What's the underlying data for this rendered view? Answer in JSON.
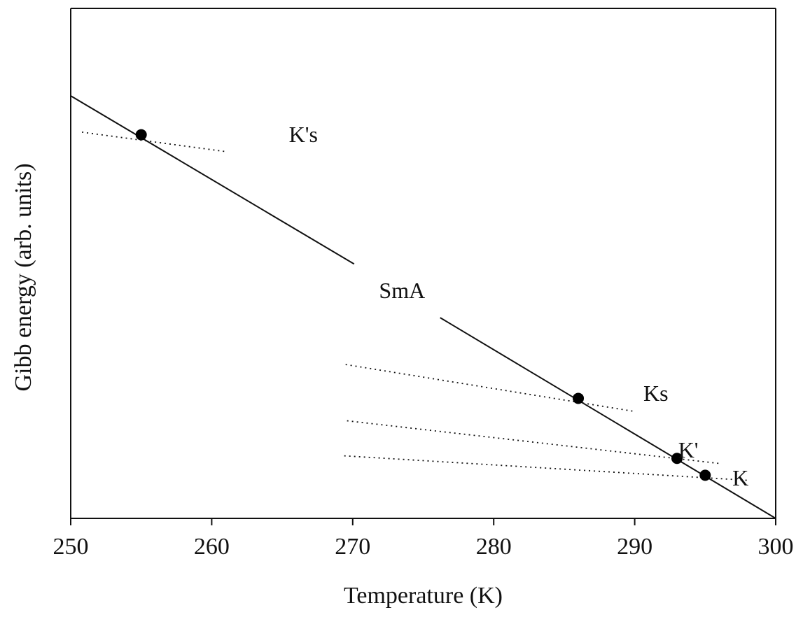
{
  "chart_data": {
    "type": "line",
    "xlabel": "Temperature (K)",
    "ylabel": "Gibb energy (arb. units)",
    "xlim": [
      250,
      300
    ],
    "ylim": [
      0,
      100
    ],
    "xticks": [
      250,
      260,
      270,
      280,
      290,
      300
    ],
    "grid": false,
    "legend": "none",
    "series": [
      {
        "name": "SmA",
        "style": "solid",
        "points": [
          [
            250,
            100
          ],
          [
            270.1,
            60.2
          ]
        ],
        "points2": [
          [
            276.2,
            47.5
          ],
          [
            300,
            0
          ]
        ]
      },
      {
        "name": "K's",
        "style": "dotted",
        "points": [
          [
            250.8,
            91.4
          ],
          [
            261,
            86.8
          ]
        ]
      },
      {
        "name": "Ks",
        "style": "dotted",
        "points": [
          [
            269.5,
            36.4
          ],
          [
            290,
            25.3
          ]
        ]
      },
      {
        "name": "K'",
        "style": "dotted",
        "points": [
          [
            269.6,
            23.1
          ],
          [
            296,
            13.0
          ]
        ]
      },
      {
        "name": "K",
        "style": "dotted",
        "points": [
          [
            269.4,
            14.8
          ],
          [
            298,
            9.0
          ]
        ]
      }
    ],
    "markers": [
      {
        "x": 255,
        "y": 90.8
      },
      {
        "x": 286,
        "y": 28.4
      },
      {
        "x": 293,
        "y": 14.2
      },
      {
        "x": 295,
        "y": 10.2
      }
    ],
    "annotations": [
      {
        "text": "K's",
        "x": 266.5,
        "y": 90.3
      },
      {
        "text": "SmA",
        "x": 273.5,
        "y": 53.4
      },
      {
        "text": "Ks",
        "x": 291.5,
        "y": 29.0
      },
      {
        "text": "K'",
        "x": 293.8,
        "y": 15.6
      },
      {
        "text": "K",
        "x": 297.5,
        "y": 9.0
      }
    ],
    "colors": {
      "axis": "#111111",
      "line": "#111111",
      "marker": "#000000"
    }
  }
}
